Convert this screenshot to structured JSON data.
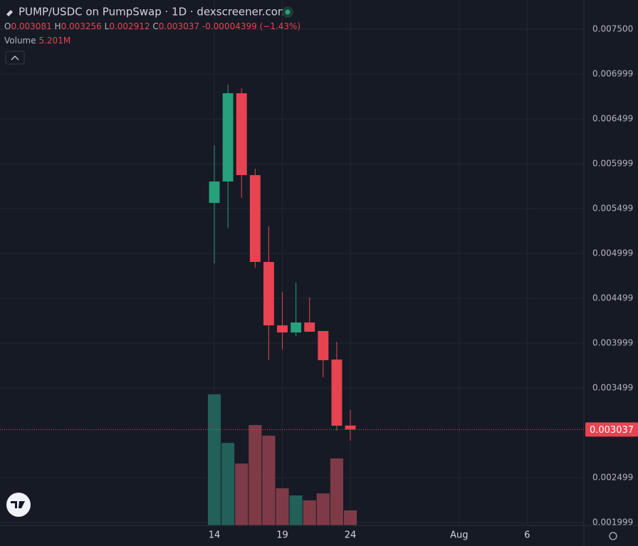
{
  "chart_data": {
    "type": "candlestick",
    "title": "PUMP/USDC on PumpSwap · 1D · dexscreener.com",
    "x": [
      14,
      15,
      16,
      17,
      18,
      19,
      20,
      21,
      22,
      23,
      24
    ],
    "open": [
      0.005563,
      0.005802,
      0.006786,
      0.005873,
      0.004905,
      0.004198,
      0.004119,
      0.00423,
      0.004135,
      0.003817,
      0.003081
    ],
    "high": [
      0.006206,
      0.006881,
      0.006841,
      0.005944,
      0.005302,
      0.004571,
      0.004675,
      0.004508,
      0.004135,
      0.004016,
      0.003256
    ],
    "low": [
      0.004889,
      0.005286,
      0.005619,
      0.00484,
      0.00381,
      0.003929,
      0.004079,
      0.004127,
      0.003619,
      0.003024,
      0.002912
    ],
    "close": [
      0.005802,
      0.006786,
      0.005873,
      0.004905,
      0.004198,
      0.004119,
      0.00423,
      0.004127,
      0.00381,
      0.003079,
      0.003037
    ],
    "change": -4.399e-05,
    "change_pct": {
      "value": -1.43,
      "label": "(−1.43%)"
    },
    "volume": {
      "name": "Volume",
      "values": [
        45.6,
        28.7,
        21.5,
        34.9,
        31.2,
        12.9,
        10.4,
        8.7,
        11.1,
        23.3,
        5.201
      ],
      "last_label": "5.201M"
    },
    "vlim": [
      0,
      182.8
    ],
    "up_color": "#26a17b",
    "down_color": "#e84350",
    "up_volume_color": "#22605a",
    "down_volume_color": "#7e3b47",
    "ylim": [
      0.0019683,
      0.0078254
    ],
    "yticks": [
      {
        "value": 0.0075,
        "label": "0.007500"
      },
      0.006999,
      0.006499,
      0.005999,
      0.005499,
      0.004999,
      0.004499,
      0.003999,
      0.003499,
      0.002499,
      0.001999
    ],
    "xlim": [
      -1.76,
      41.17
    ],
    "xticks": [
      14,
      19,
      24,
      {
        "value": 32,
        "label": "Aug"
      },
      {
        "value": 37,
        "label": "6"
      }
    ],
    "grid": true
  }
}
